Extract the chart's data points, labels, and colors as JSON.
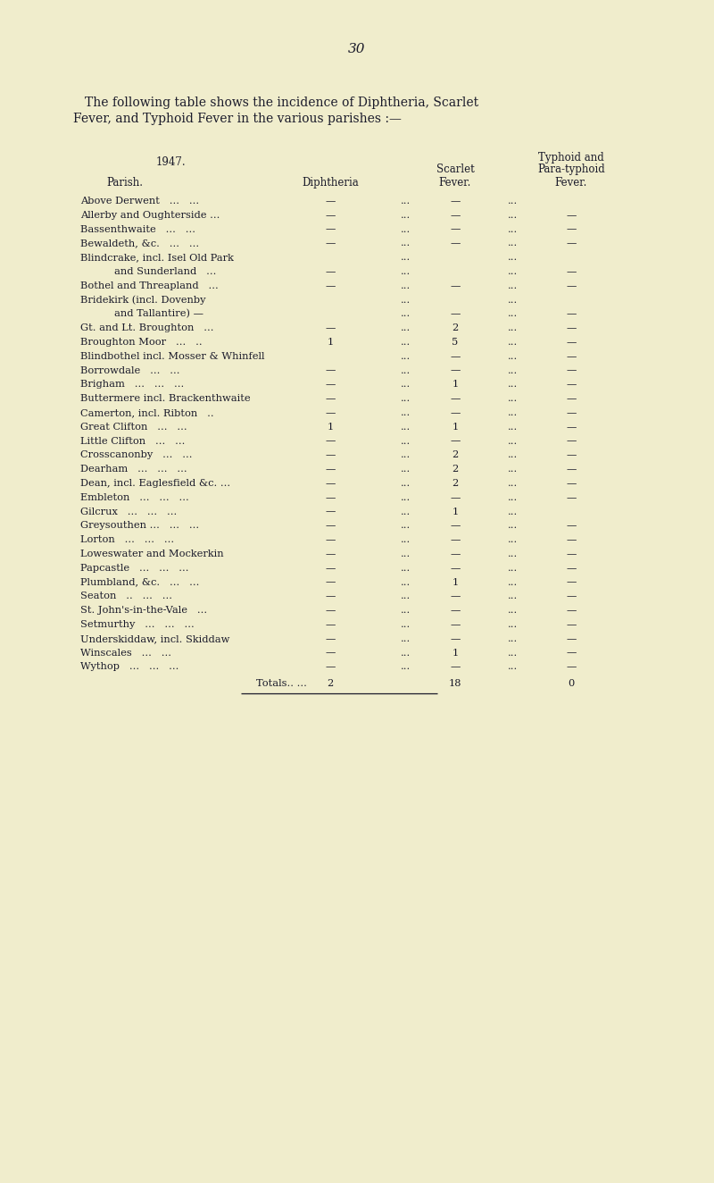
{
  "page_number": "30",
  "intro_line1": "The following table shows the incidence of Diphtheria, Scarlet",
  "intro_line2": "Fever, and Typhoid Fever in the various parishes :—",
  "year": "1947.",
  "col_parish": "Parish.",
  "col_diphtheria": "Diphtheria",
  "col_scarlet1": "Scarlet",
  "col_scarlet2": "Fever.",
  "col_typhoid1": "Typhoid and",
  "col_typhoid2": "Para-typhoid",
  "col_typhoid3": "Fever.",
  "rows": [
    {
      "parish": "Above Derwent   ...   ...",
      "indent": false,
      "diphtheria": "—",
      "scarlet": "—",
      "typhoid": ""
    },
    {
      "parish": "Allerby and Oughterside ...",
      "indent": false,
      "diphtheria": "—",
      "scarlet": "—",
      "typhoid": "—"
    },
    {
      "parish": "Bassenthwaite   ...   ...",
      "indent": false,
      "diphtheria": "—",
      "scarlet": "—",
      "typhoid": "—"
    },
    {
      "parish": "Bewaldeth, &c.   ...   ...",
      "indent": false,
      "diphtheria": "—",
      "scarlet": "—",
      "typhoid": "—"
    },
    {
      "parish": "Blindcrake, incl. Isel Old Park",
      "indent": false,
      "diphtheria": "",
      "scarlet": "",
      "typhoid": ""
    },
    {
      "parish": "and Sunderland   ...",
      "indent": true,
      "diphtheria": "—",
      "scarlet": "",
      "typhoid": "—"
    },
    {
      "parish": "Bothel and Threapland   ...",
      "indent": false,
      "diphtheria": "—",
      "scarlet": "—",
      "typhoid": "—"
    },
    {
      "parish": "Bridekirk (incl. Dovenby",
      "indent": false,
      "diphtheria": "",
      "scarlet": "",
      "typhoid": ""
    },
    {
      "parish": "and Tallantire) —",
      "indent": true,
      "diphtheria": "",
      "scarlet": "—",
      "typhoid": "—"
    },
    {
      "parish": "Gt. and Lt. Broughton   ...",
      "indent": false,
      "diphtheria": "—",
      "scarlet": "2",
      "typhoid": "—"
    },
    {
      "parish": "Broughton Moor   ...   ..",
      "indent": false,
      "diphtheria": "1",
      "scarlet": "5",
      "typhoid": "—"
    },
    {
      "parish": "Blindbothel incl. Mosser & Whinfell",
      "indent": false,
      "diphtheria": "",
      "scarlet": "—",
      "typhoid": "—"
    },
    {
      "parish": "Borrowdale   ...   ...",
      "indent": false,
      "diphtheria": "—",
      "scarlet": "—",
      "typhoid": "—"
    },
    {
      "parish": "Brigham   ...   ...   ...",
      "indent": false,
      "diphtheria": "—",
      "scarlet": "1",
      "typhoid": "—"
    },
    {
      "parish": "Buttermere incl. Brackenthwaite",
      "indent": false,
      "diphtheria": "—",
      "scarlet": "—",
      "typhoid": "—"
    },
    {
      "parish": "Camerton, incl. Ribton   ..",
      "indent": false,
      "diphtheria": "—",
      "scarlet": "—",
      "typhoid": "—"
    },
    {
      "parish": "Great Clifton   ...   ...",
      "indent": false,
      "diphtheria": "1",
      "scarlet": "1",
      "typhoid": "—"
    },
    {
      "parish": "Little Clifton   ...   ...",
      "indent": false,
      "diphtheria": "—",
      "scarlet": "—",
      "typhoid": "—"
    },
    {
      "parish": "Crosscanonby   ...   ...",
      "indent": false,
      "diphtheria": "—",
      "scarlet": "2",
      "typhoid": "—"
    },
    {
      "parish": "Dearham   ...   ...   ...",
      "indent": false,
      "diphtheria": "—",
      "scarlet": "2",
      "typhoid": "—"
    },
    {
      "parish": "Dean, incl. Eaglesfield &c. ...",
      "indent": false,
      "diphtheria": "—",
      "scarlet": "2",
      "typhoid": "—"
    },
    {
      "parish": "Embleton   ...   ...   ...",
      "indent": false,
      "diphtheria": "—",
      "scarlet": "—",
      "typhoid": "—"
    },
    {
      "parish": "Gilcrux   ...   ...   ...",
      "indent": false,
      "diphtheria": "—",
      "scarlet": "1",
      "typhoid": ""
    },
    {
      "parish": "Greysouthen ...   ...   ...",
      "indent": false,
      "diphtheria": "—",
      "scarlet": "—",
      "typhoid": "—"
    },
    {
      "parish": "Lorton   ...   ...   ...",
      "indent": false,
      "diphtheria": "—",
      "scarlet": "—",
      "typhoid": "—"
    },
    {
      "parish": "Loweswater and Mockerkin",
      "indent": false,
      "diphtheria": "—",
      "scarlet": "—",
      "typhoid": "—"
    },
    {
      "parish": "Papcastle   ...   ...   ...",
      "indent": false,
      "diphtheria": "—",
      "scarlet": "—",
      "typhoid": "—"
    },
    {
      "parish": "Plumbland, &c.   ...   ...",
      "indent": false,
      "diphtheria": "—",
      "scarlet": "1",
      "typhoid": "—"
    },
    {
      "parish": "Seaton   ..   ...   ...",
      "indent": false,
      "diphtheria": "—",
      "scarlet": "—",
      "typhoid": "—"
    },
    {
      "parish": "St. John's-in-the-Vale   ...",
      "indent": false,
      "diphtheria": "—",
      "scarlet": "—",
      "typhoid": "—"
    },
    {
      "parish": "Setmurthy   ...   ...   ...",
      "indent": false,
      "diphtheria": "—",
      "scarlet": "—",
      "typhoid": "—"
    },
    {
      "parish": "Underskiddaw, incl. Skiddaw",
      "indent": false,
      "diphtheria": "—",
      "scarlet": "—",
      "typhoid": "—"
    },
    {
      "parish": "Winscales   ...   ...",
      "indent": false,
      "diphtheria": "—",
      "scarlet": "1",
      "typhoid": "—"
    },
    {
      "parish": "Wythop   ...   ...   ...",
      "indent": false,
      "diphtheria": "—",
      "scarlet": "—",
      "typhoid": "—"
    }
  ],
  "totals_label": "Totals.. ...",
  "total_diphtheria": "2",
  "total_scarlet": "18",
  "total_typhoid": "0",
  "bg_color": "#f0edcc",
  "text_color": "#1a1a2a",
  "fs_page": 11,
  "fs_intro": 10,
  "fs_header": 8.5,
  "fs_row": 8.2
}
